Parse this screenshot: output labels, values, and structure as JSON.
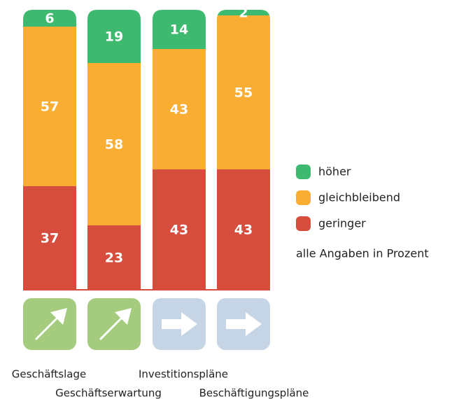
{
  "chart_data": {
    "type": "stacked-bar",
    "categories": [
      "Geschäftslage",
      "Geschäftserwartung",
      "Investitionspläne",
      "Beschäftigungspläne"
    ],
    "series": [
      {
        "name": "höher",
        "color": "#3dba6f",
        "values": [
          6,
          19,
          14,
          2
        ]
      },
      {
        "name": "gleichbleibend",
        "color": "#f9ae33",
        "values": [
          57,
          58,
          43,
          55
        ]
      },
      {
        "name": "geringer",
        "color": "#d64d3d",
        "values": [
          37,
          23,
          43,
          43
        ]
      }
    ],
    "ylim": [
      0,
      100
    ],
    "note": "alle Angaben in Prozent"
  }
}
